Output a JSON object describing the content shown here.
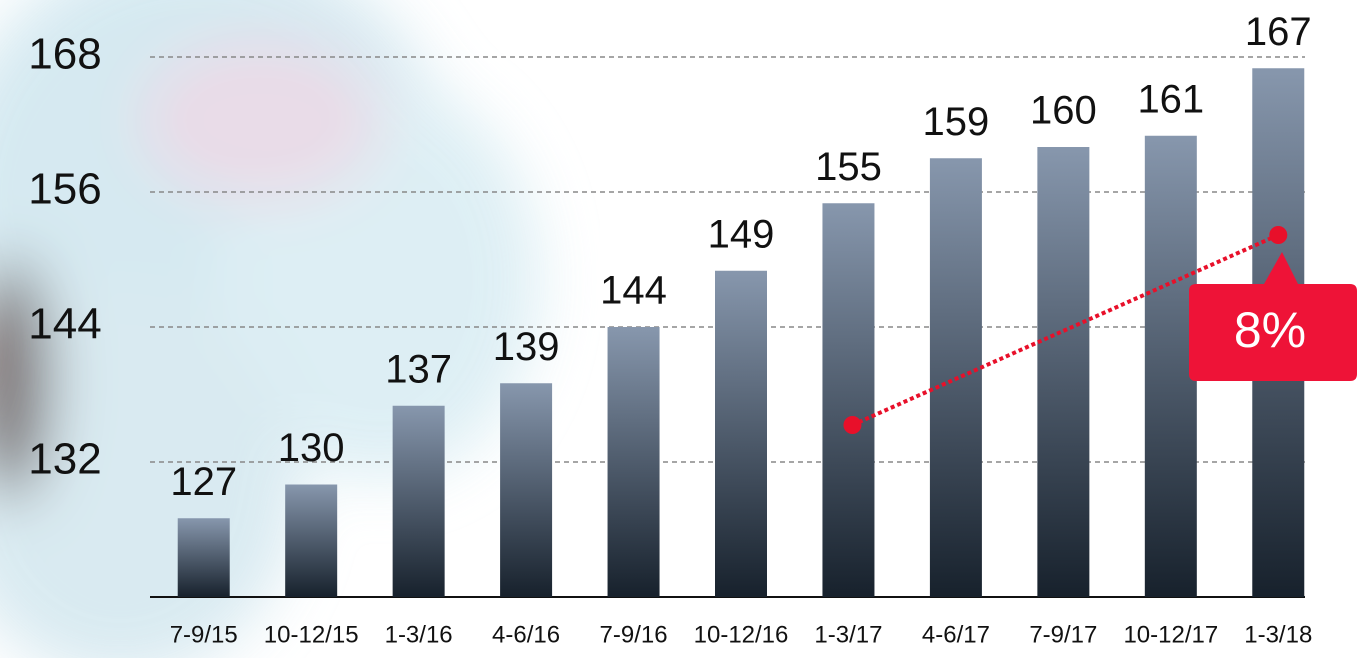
{
  "chart_data": {
    "type": "bar",
    "categories": [
      "7-9/15",
      "10-12/15",
      "1-3/16",
      "4-6/16",
      "7-9/16",
      "10-12/16",
      "1-3/17",
      "4-6/17",
      "7-9/17",
      "10-12/17",
      "1-3/18"
    ],
    "values": [
      127,
      130,
      137,
      139,
      144,
      149,
      155,
      159,
      160,
      161,
      167
    ],
    "color": "#2a3644",
    "ylim": [
      120,
      168
    ],
    "yticks": [
      132,
      144,
      156,
      168
    ],
    "grid": true,
    "annotation": "8%"
  }
}
